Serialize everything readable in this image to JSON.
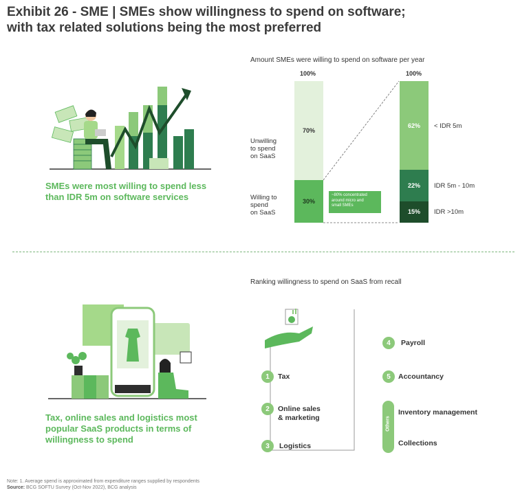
{
  "title_line1": "Exhibit 26 - SME | SMEs show willingness to spend on software;",
  "title_line2": "with tax related solutions being the most preferred",
  "top_caption_line1": "SMEs were most willing to spend less",
  "top_caption_line2": "than IDR 5m on software services",
  "bottom_caption_line1": "Tax, online sales and logistics most",
  "bottom_caption_line2": "popular SaaS products in terms of",
  "bottom_caption_line3": "willingness to spend",
  "chart_data": {
    "type": "bar",
    "title": "Amount SMEs were willing to spend on software per year",
    "stacked": true,
    "bars": [
      {
        "total_label": "100%",
        "segments": [
          {
            "name_line1": "Unwilling",
            "name_line2": "to spend",
            "name_line3": "on SaaS",
            "value": 70,
            "label": "70%",
            "color": "#e3f1dc"
          },
          {
            "name_line1": "Willing to",
            "name_line2": "spend",
            "name_line3": "on SaaS",
            "value": 30,
            "label": "30%",
            "color": "#5cb85c"
          }
        ]
      },
      {
        "total_label": "100%",
        "segments": [
          {
            "name": "< IDR 5m",
            "value": 62,
            "label": "62%",
            "color": "#8cc97a"
          },
          {
            "name": "IDR 5m - 10m",
            "value": 22,
            "label": "22%",
            "color": "#2e7d4f"
          },
          {
            "name": "IDR >10m",
            "value": 15,
            "label": "15%",
            "color": "#1e4d2b"
          }
        ]
      }
    ],
    "annotation_line1": "~80% concentrated",
    "annotation_line2": "around micro and",
    "annotation_line3": "small SMEs"
  },
  "ranking": {
    "title": "Ranking willingness to spend on SaaS from recall",
    "items": [
      {
        "num": "1",
        "label": "Tax"
      },
      {
        "num": "2",
        "label_line1": "Online sales",
        "label_line2": "& marketing"
      },
      {
        "num": "3",
        "label": "Logistics"
      },
      {
        "num": "4",
        "label": "Payroll"
      },
      {
        "num": "5",
        "label": "Accountancy"
      }
    ],
    "others_label": "Others",
    "others": [
      "Inventory management",
      "Collections"
    ]
  },
  "footnote_line1": "Note: 1. Average spend is approximated from expenditure ranges supplied by respondents",
  "footnote_source": "Source:",
  "footnote_line2": " BCG SOFTU Survey (Oct-Nov 2022), BCG analysis",
  "colors": {
    "accent": "#5cb85c",
    "dark": "#1e4d2b",
    "mid": "#2e7d4f",
    "light": "#8cc97a",
    "pale": "#e3f1dc"
  }
}
